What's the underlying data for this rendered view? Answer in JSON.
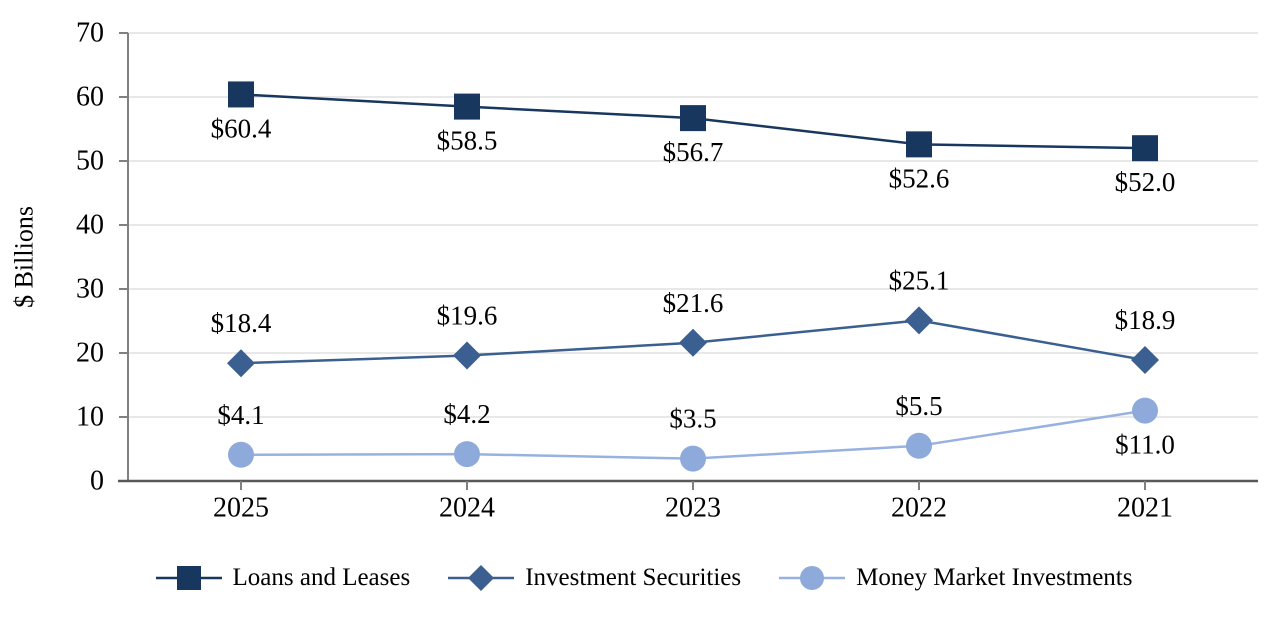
{
  "chart_data": {
    "type": "line",
    "categories": [
      "2025",
      "2024",
      "2023",
      "2022",
      "2021"
    ],
    "series": [
      {
        "name": "Loans and Leases",
        "marker": "square",
        "color": "#17375E",
        "line_color": "#17375E",
        "values": [
          60.4,
          58.5,
          56.7,
          52.6,
          52.0
        ],
        "data_labels": [
          "$60.4",
          "$58.5",
          "$56.7",
          "$52.6",
          "$52.0"
        ],
        "label_position": "below"
      },
      {
        "name": "Investment Securities",
        "marker": "diamond",
        "color": "#3A5F90",
        "line_color": "#3A5F90",
        "values": [
          18.4,
          19.6,
          21.6,
          25.1,
          18.9
        ],
        "data_labels": [
          "$18.4",
          "$19.6",
          "$21.6",
          "$25.1",
          "$18.9"
        ],
        "label_position": "above"
      },
      {
        "name": "Money Market Investments",
        "marker": "circle",
        "color": "#8EAADB",
        "line_color": "#97B1E1",
        "values": [
          4.1,
          4.2,
          3.5,
          5.5,
          11.0
        ],
        "data_labels": [
          "$4.1",
          "$4.2",
          "$3.5",
          "$5.5",
          "$11.0"
        ],
        "label_position": "above",
        "label_position_overrides": {
          "4": "below"
        }
      }
    ],
    "ylabel": "$ Billions",
    "ylim": [
      0,
      70
    ],
    "ytick_step": 10,
    "ytick_labels": [
      "0",
      "10",
      "20",
      "30",
      "40",
      "50",
      "60",
      "70"
    ],
    "xlabel": "",
    "title": "",
    "grid": true,
    "legend_position": "bottom",
    "style": {
      "grid_color": "#D9D9D9",
      "y_axis_color": "#808080",
      "x_axis_color": "#595959",
      "tick_color": "#808080",
      "text_color": "#000000",
      "background": "#FFFFFF"
    }
  }
}
